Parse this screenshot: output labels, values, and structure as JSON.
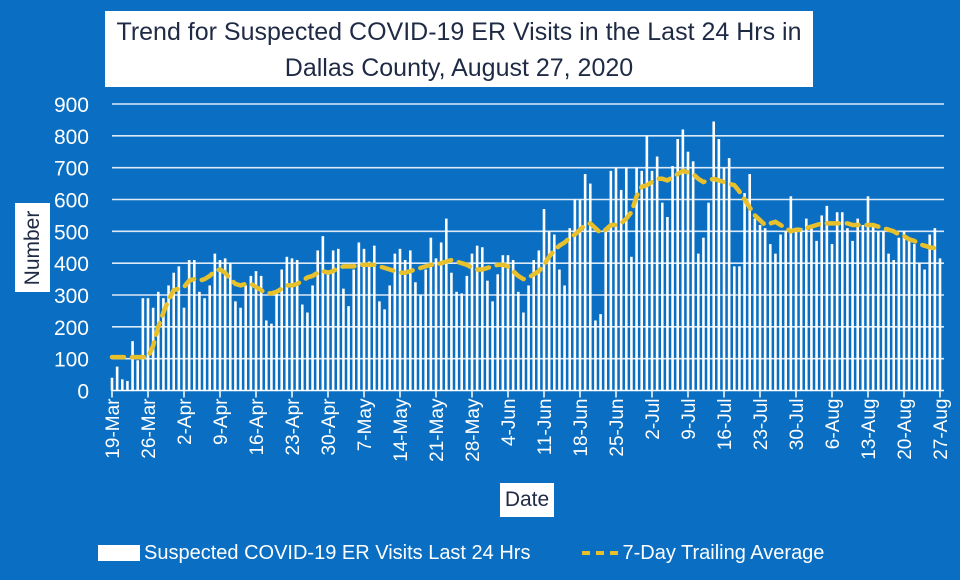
{
  "chart_data": {
    "type": "bar",
    "title": "Trend for Suspected COVID-19 ER Visits in the Last 24 Hrs in Dallas County, August 27, 2020",
    "title_lines": [
      "Trend for Suspected COVID-19 ER Visits in the Last 24 Hrs in",
      "Dallas County, August 27, 2020"
    ],
    "xlabel": "Date",
    "ylabel": "Number",
    "ylim": [
      0,
      900
    ],
    "yticks": [
      0,
      100,
      200,
      300,
      400,
      500,
      600,
      700,
      800,
      900
    ],
    "grid": true,
    "start_date": "19-Mar",
    "xtick_labels": [
      "19-Mar",
      "26-Mar",
      "2-Apr",
      "9-Apr",
      "16-Apr",
      "23-Apr",
      "30-Apr",
      "7-May",
      "14-May",
      "21-May",
      "28-May",
      "4-Jun",
      "11-Jun",
      "18-Jun",
      "25-Jun",
      "2-Jul",
      "9-Jul",
      "16-Jul",
      "23-Jul",
      "30-Jul",
      "6-Aug",
      "13-Aug",
      "20-Aug",
      "27-Aug"
    ],
    "legend_position": "bottom",
    "series": [
      {
        "name": "Suspected COVID-19 ER Visits Last 24 Hrs",
        "type": "bar",
        "color": "#ffffff",
        "values": [
          40,
          75,
          35,
          30,
          155,
          95,
          290,
          290,
          260,
          310,
          290,
          330,
          370,
          390,
          260,
          410,
          410,
          310,
          290,
          330,
          430,
          410,
          415,
          400,
          280,
          260,
          330,
          360,
          375,
          360,
          220,
          210,
          310,
          380,
          420,
          415,
          410,
          270,
          245,
          330,
          440,
          485,
          370,
          440,
          445,
          320,
          265,
          380,
          465,
          445,
          405,
          455,
          280,
          255,
          330,
          430,
          445,
          410,
          440,
          340,
          300,
          380,
          480,
          415,
          465,
          540,
          370,
          310,
          305,
          360,
          430,
          455,
          450,
          345,
          280,
          365,
          425,
          425,
          410,
          310,
          245,
          330,
          410,
          440,
          570,
          500,
          490,
          380,
          330,
          510,
          600,
          600,
          680,
          650,
          220,
          240,
          500,
          690,
          700,
          630,
          700,
          420,
          700,
          690,
          800,
          690,
          735,
          590,
          545,
          705,
          790,
          820,
          750,
          720,
          430,
          480,
          590,
          845,
          790,
          700,
          730,
          390,
          390,
          620,
          680,
          540,
          520,
          510,
          460,
          430,
          490,
          500,
          610,
          500,
          510,
          540,
          510,
          470,
          550,
          580,
          460,
          560,
          560,
          510,
          470,
          540,
          520,
          610,
          520,
          500,
          500,
          430,
          410,
          480,
          500,
          470,
          460,
          400,
          380,
          490,
          510,
          415
        ]
      },
      {
        "name": "7-Day Trailing Average",
        "type": "line",
        "style": "dashed",
        "color": "#e8c02b",
        "values": [
          105,
          105,
          105,
          105,
          105,
          105,
          105,
          105,
          140,
          200,
          245,
          285,
          315,
          320,
          325,
          345,
          350,
          345,
          350,
          360,
          375,
          380,
          370,
          350,
          335,
          330,
          335,
          335,
          325,
          315,
          305,
          305,
          310,
          320,
          330,
          330,
          335,
          345,
          355,
          360,
          370,
          375,
          370,
          375,
          385,
          390,
          390,
          390,
          395,
          395,
          395,
          395,
          390,
          385,
          380,
          375,
          370,
          370,
          375,
          380,
          385,
          390,
          395,
          395,
          400,
          405,
          410,
          405,
          400,
          395,
          385,
          380,
          380,
          385,
          390,
          395,
          395,
          390,
          375,
          360,
          350,
          355,
          365,
          375,
          395,
          420,
          440,
          455,
          465,
          480,
          490,
          505,
          520,
          525,
          510,
          495,
          505,
          520,
          520,
          525,
          540,
          560,
          610,
          640,
          645,
          655,
          665,
          665,
          660,
          670,
          680,
          690,
          685,
          680,
          665,
          655,
          660,
          665,
          660,
          655,
          650,
          645,
          625,
          600,
          575,
          550,
          535,
          520,
          525,
          530,
          520,
          510,
          500,
          505,
          505,
          510,
          515,
          520,
          525,
          525,
          525,
          525,
          525,
          525,
          520,
          520,
          520,
          520,
          520,
          515,
          510,
          505,
          500,
          490,
          485,
          475,
          470,
          460,
          455,
          450,
          447,
          440
        ]
      }
    ]
  },
  "legend": {
    "bar_label": "Suspected COVID-19 ER Visits Last 24 Hrs",
    "line_label": "7-Day Trailing Average"
  }
}
